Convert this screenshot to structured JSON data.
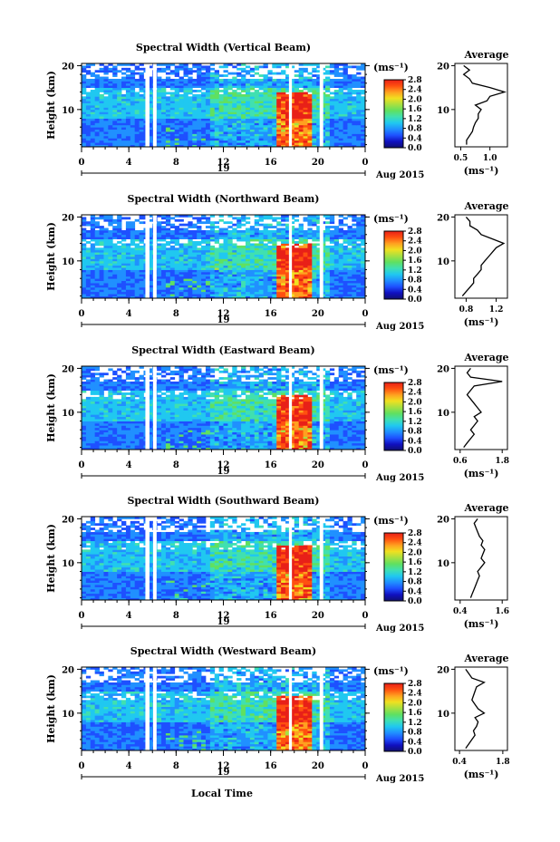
{
  "figure": {
    "xlabel": "Local Time",
    "ylabel": "Height (km)",
    "date_label": "Aug 2015",
    "day_label": "19",
    "colorbar_unit": "(ms⁻¹)",
    "avg_title": "Average",
    "avg_unit": "(ms⁻¹)",
    "colorbar_ticks": [
      "0.0",
      "0.4",
      "0.8",
      "1.2",
      "1.6",
      "2.0",
      "2.4",
      "2.8"
    ],
    "colormap": [
      "#101070",
      "#1010c0",
      "#1e50ff",
      "#2090ff",
      "#20c8f0",
      "#40e0b0",
      "#60e060",
      "#a8e040",
      "#f0e020",
      "#ffa020",
      "#ff5010",
      "#e82018"
    ]
  },
  "chart_data": [
    {
      "type": "heatmap",
      "title": "Spectral Width (Vertical Beam)",
      "xlabel": "Local Time",
      "ylabel": "Height (km)",
      "x_ticks": [
        "0",
        "4",
        "8",
        "12",
        "16",
        "20",
        "0"
      ],
      "y_ticks": [
        "10",
        "20"
      ],
      "xlim": [
        0,
        24
      ],
      "ylim": [
        1.5,
        20.5
      ],
      "colorbar_range": [
        0.0,
        2.8
      ],
      "average_profile": {
        "x_ticks": [
          "0.5",
          "1.0"
        ],
        "xlim": [
          0.4,
          1.3
        ],
        "ylim": [
          1.5,
          20.5
        ],
        "height": [
          2,
          3,
          4,
          5,
          6,
          7,
          8,
          9,
          10,
          11,
          12,
          13,
          14,
          15,
          16,
          17,
          18,
          19,
          20
        ],
        "values": [
          0.6,
          0.6,
          0.65,
          0.7,
          0.72,
          0.75,
          0.8,
          0.8,
          0.85,
          0.75,
          0.95,
          1.0,
          1.25,
          1.0,
          0.7,
          0.65,
          0.55,
          0.65,
          0.55
        ]
      }
    },
    {
      "type": "heatmap",
      "title": "Spectral Width (Northward Beam)",
      "xlabel": "Local Time",
      "ylabel": "Height (km)",
      "x_ticks": [
        "0",
        "4",
        "8",
        "12",
        "16",
        "20",
        "0"
      ],
      "y_ticks": [
        "10",
        "20"
      ],
      "xlim": [
        0,
        24
      ],
      "ylim": [
        1.5,
        20.5
      ],
      "colorbar_range": [
        0.0,
        2.8
      ],
      "average_profile": {
        "x_ticks": [
          "0.8",
          "1.2"
        ],
        "xlim": [
          0.65,
          1.35
        ],
        "ylim": [
          1.5,
          20.5
        ],
        "height": [
          2,
          3,
          4,
          5,
          6,
          7,
          8,
          9,
          10,
          11,
          12,
          13,
          14,
          15,
          16,
          17,
          18,
          19,
          20
        ],
        "values": [
          0.75,
          0.8,
          0.85,
          0.9,
          0.9,
          0.95,
          1.0,
          1.0,
          1.05,
          1.1,
          1.15,
          1.2,
          1.3,
          1.15,
          1.0,
          0.95,
          0.85,
          0.85,
          0.8
        ]
      }
    },
    {
      "type": "heatmap",
      "title": "Spectral Width (Eastward Beam)",
      "xlabel": "Local Time",
      "ylabel": "Height (km)",
      "x_ticks": [
        "0",
        "4",
        "8",
        "12",
        "16",
        "20",
        "0"
      ],
      "y_ticks": [
        "10",
        "20"
      ],
      "xlim": [
        0,
        24
      ],
      "ylim": [
        1.5,
        20.5
      ],
      "colorbar_range": [
        0.0,
        2.8
      ],
      "average_profile": {
        "x_ticks": [
          "0.6",
          "1.8"
        ],
        "xlim": [
          0.45,
          1.95
        ],
        "ylim": [
          1.5,
          20.5
        ],
        "height": [
          2,
          3,
          4,
          5,
          6,
          7,
          8,
          9,
          10,
          11,
          12,
          13,
          14,
          15,
          16,
          17,
          18,
          19,
          20
        ],
        "values": [
          0.7,
          0.8,
          0.9,
          1.0,
          0.9,
          1.0,
          1.1,
          1.0,
          1.2,
          1.1,
          1.0,
          0.9,
          0.8,
          0.9,
          1.0,
          1.8,
          0.9,
          0.8,
          0.9
        ]
      }
    },
    {
      "type": "heatmap",
      "title": "Spectral Width (Southward Beam)",
      "xlabel": "Local Time",
      "ylabel": "Height (km)",
      "x_ticks": [
        "0",
        "4",
        "8",
        "12",
        "16",
        "20",
        "0"
      ],
      "y_ticks": [
        "10",
        "20"
      ],
      "xlim": [
        0,
        24
      ],
      "ylim": [
        1.5,
        20.5
      ],
      "colorbar_range": [
        0.0,
        2.8
      ],
      "average_profile": {
        "x_ticks": [
          "0.4",
          "1.6"
        ],
        "xlim": [
          0.25,
          1.75
        ],
        "ylim": [
          1.5,
          20.5
        ],
        "height": [
          2,
          3,
          4,
          5,
          6,
          7,
          8,
          9,
          10,
          11,
          12,
          13,
          14,
          15,
          16,
          17,
          18,
          19,
          20
        ],
        "values": [
          0.7,
          0.75,
          0.8,
          0.85,
          0.9,
          0.95,
          0.9,
          1.0,
          1.1,
          1.0,
          1.05,
          1.1,
          1.0,
          1.05,
          0.95,
          0.9,
          0.85,
          0.8,
          0.9
        ]
      }
    },
    {
      "type": "heatmap",
      "title": "Spectral Width (Westward Beam)",
      "xlabel": "Local Time",
      "ylabel": "Height (km)",
      "x_ticks": [
        "0",
        "4",
        "8",
        "12",
        "16",
        "20",
        "0"
      ],
      "y_ticks": [
        "10",
        "20"
      ],
      "xlim": [
        0,
        24
      ],
      "ylim": [
        1.5,
        20.5
      ],
      "colorbar_range": [
        0.0,
        2.8
      ],
      "average_profile": {
        "x_ticks": [
          "0.4",
          "1.8"
        ],
        "xlim": [
          0.25,
          1.95
        ],
        "ylim": [
          1.5,
          20.5
        ],
        "height": [
          2,
          3,
          4,
          5,
          6,
          7,
          8,
          9,
          10,
          11,
          12,
          13,
          14,
          15,
          16,
          17,
          18,
          19,
          20
        ],
        "values": [
          0.6,
          0.7,
          0.8,
          0.9,
          0.85,
          0.95,
          1.0,
          0.9,
          1.2,
          1.0,
          0.9,
          0.8,
          0.85,
          0.9,
          0.95,
          1.2,
          0.8,
          0.7,
          0.6
        ]
      }
    }
  ]
}
